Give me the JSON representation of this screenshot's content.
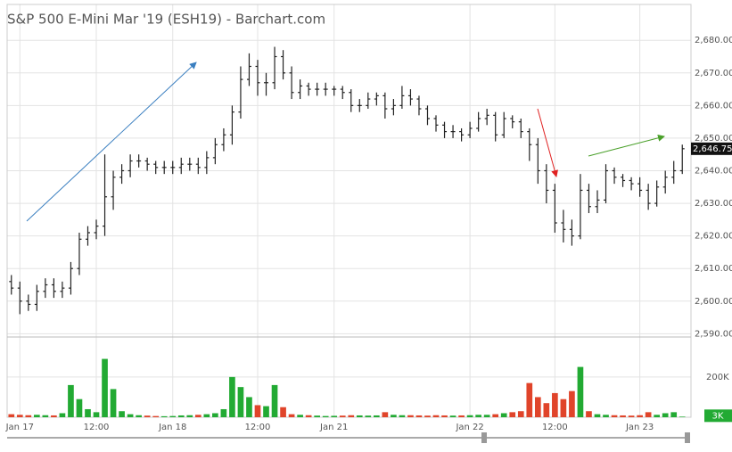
{
  "chart_data": {
    "type": "ohlc",
    "title": "S&P 500 E-Mini Mar '19 (ESH19) - Barchart.com",
    "categories": [
      null,
      "Jan 17",
      null,
      null,
      null,
      null,
      null,
      null,
      null,
      null,
      "12:00",
      null,
      null,
      null,
      null,
      null,
      null,
      null,
      null,
      "Jan 18",
      null,
      null,
      null,
      null,
      null,
      null,
      null,
      null,
      null,
      "12:00",
      null,
      null,
      null,
      null,
      null,
      null,
      null,
      null,
      "Jan 21",
      null,
      null,
      null,
      null,
      null,
      null,
      null,
      null,
      null,
      null,
      null,
      null,
      null,
      null,
      null,
      "Jan 22",
      null,
      null,
      null,
      null,
      null,
      null,
      null,
      null,
      null,
      "12:00",
      null,
      null,
      null,
      null,
      null,
      null,
      null,
      null,
      null,
      "Jan 23",
      null,
      null,
      null,
      null,
      null
    ],
    "open": [
      2606,
      2604,
      2600,
      2599,
      2603,
      2605,
      2603,
      2604,
      2610,
      2619,
      2621,
      2623,
      2632,
      2638,
      2640,
      2643,
      2643,
      2642,
      2641,
      2641,
      2641,
      2642,
      2642,
      2641,
      2644,
      2648,
      2651,
      2658,
      2668,
      2672,
      2667,
      2667,
      2675,
      2670,
      2664,
      2666,
      2665,
      2665,
      2665,
      2665,
      2664,
      2660,
      2660,
      2662,
      2663,
      2659,
      2660,
      2663,
      2662,
      2659,
      2656,
      2654,
      2652,
      2652,
      2651,
      2653,
      2656,
      2657,
      2651,
      2656,
      2655,
      2652,
      2648,
      2640,
      2634,
      2624,
      2622,
      2620,
      2634,
      2629,
      2631,
      2640,
      2638,
      2637,
      2636,
      2634,
      2630,
      2635,
      2638,
      2640
    ],
    "high": [
      2608,
      2606,
      2602,
      2605,
      2607,
      2607,
      2606,
      2612,
      2621,
      2623,
      2625,
      2645,
      2640,
      2642,
      2645,
      2645,
      2644,
      2643,
      2643,
      2643,
      2644,
      2644,
      2644,
      2646,
      2650,
      2653,
      2660,
      2672,
      2676,
      2674,
      2670,
      2678,
      2677,
      2672,
      2668,
      2667,
      2667,
      2667,
      2666,
      2666,
      2665,
      2662,
      2664,
      2664,
      2664,
      2662,
      2666,
      2665,
      2663,
      2660,
      2657,
      2655,
      2654,
      2653,
      2655,
      2658,
      2659,
      2658,
      2658,
      2657,
      2656,
      2653,
      2650,
      2642,
      2636,
      2628,
      2625,
      2639,
      2636,
      2634,
      2642,
      2641,
      2639,
      2638,
      2638,
      2636,
      2637,
      2640,
      2643,
      2648
    ],
    "low": [
      2602,
      2596,
      2597,
      2597,
      2601,
      2601,
      2601,
      2602,
      2608,
      2617,
      2619,
      2620,
      2628,
      2636,
      2638,
      2641,
      2640,
      2639,
      2639,
      2639,
      2639,
      2640,
      2639,
      2639,
      2642,
      2646,
      2648,
      2656,
      2666,
      2663,
      2663,
      2665,
      2668,
      2662,
      2662,
      2663,
      2663,
      2663,
      2663,
      2662,
      2658,
      2658,
      2659,
      2660,
      2656,
      2657,
      2659,
      2660,
      2657,
      2654,
      2652,
      2650,
      2650,
      2649,
      2650,
      2652,
      2654,
      2649,
      2650,
      2653,
      2650,
      2643,
      2636,
      2630,
      2621,
      2618,
      2617,
      2619,
      2627,
      2627,
      2630,
      2636,
      2635,
      2634,
      2632,
      2628,
      2629,
      2633,
      2636,
      2639
    ],
    "close": [
      2604,
      2600,
      2599,
      2603,
      2605,
      2603,
      2604,
      2610,
      2619,
      2621,
      2623,
      2632,
      2638,
      2640,
      2643,
      2643,
      2642,
      2641,
      2641,
      2641,
      2642,
      2642,
      2641,
      2644,
      2648,
      2651,
      2658,
      2668,
      2672,
      2667,
      2667,
      2675,
      2670,
      2664,
      2666,
      2665,
      2665,
      2665,
      2665,
      2664,
      2660,
      2660,
      2662,
      2663,
      2659,
      2660,
      2663,
      2662,
      2659,
      2656,
      2654,
      2652,
      2652,
      2651,
      2653,
      2656,
      2657,
      2651,
      2656,
      2655,
      2652,
      2648,
      2640,
      2634,
      2624,
      2622,
      2620,
      2634,
      2629,
      2631,
      2640,
      2638,
      2637,
      2636,
      2634,
      2630,
      2635,
      2638,
      2640,
      2646.75
    ],
    "color": "#222222",
    "last_price_label": "2,646.75",
    "ylim": [
      2589,
      2691
    ],
    "yticks": [
      {
        "value": 2590,
        "label": "2,590.00"
      },
      {
        "value": 2600,
        "label": "2,600.00"
      },
      {
        "value": 2610,
        "label": "2,610.00"
      },
      {
        "value": 2620,
        "label": "2,620.00"
      },
      {
        "value": 2630,
        "label": "2,630.00"
      },
      {
        "value": 2640,
        "label": "2,640.00"
      },
      {
        "value": 2650,
        "label": "2,650.00"
      },
      {
        "value": 2660,
        "label": "2,660.00"
      },
      {
        "value": 2670,
        "label": "2,670.00"
      },
      {
        "value": 2680,
        "label": "2,680.00"
      }
    ],
    "grid": true,
    "volume": {
      "values": [
        15000,
        12000,
        10000,
        12000,
        10000,
        9000,
        20000,
        160000,
        90000,
        40000,
        25000,
        290000,
        140000,
        30000,
        15000,
        10000,
        8000,
        6000,
        5000,
        6000,
        9000,
        10000,
        12000,
        15000,
        20000,
        40000,
        200000,
        150000,
        100000,
        60000,
        55000,
        160000,
        50000,
        15000,
        12000,
        10000,
        8000,
        6000,
        7000,
        8000,
        10000,
        9000,
        8000,
        9000,
        25000,
        12000,
        10000,
        10000,
        9000,
        8000,
        10000,
        9000,
        8000,
        9000,
        10000,
        12000,
        12000,
        15000,
        20000,
        25000,
        30000,
        170000,
        100000,
        70000,
        120000,
        90000,
        130000,
        250000,
        30000,
        15000,
        12000,
        10000,
        9000,
        8000,
        10000,
        25000,
        12000,
        20000,
        25000,
        3000
      ],
      "up_color": "#22aa33",
      "down_color": "#e0442a",
      "last_label": "3K",
      "vlim": [
        0,
        390000
      ],
      "vticks": [
        {
          "value": 200000,
          "label": "200K"
        }
      ]
    }
  }
}
